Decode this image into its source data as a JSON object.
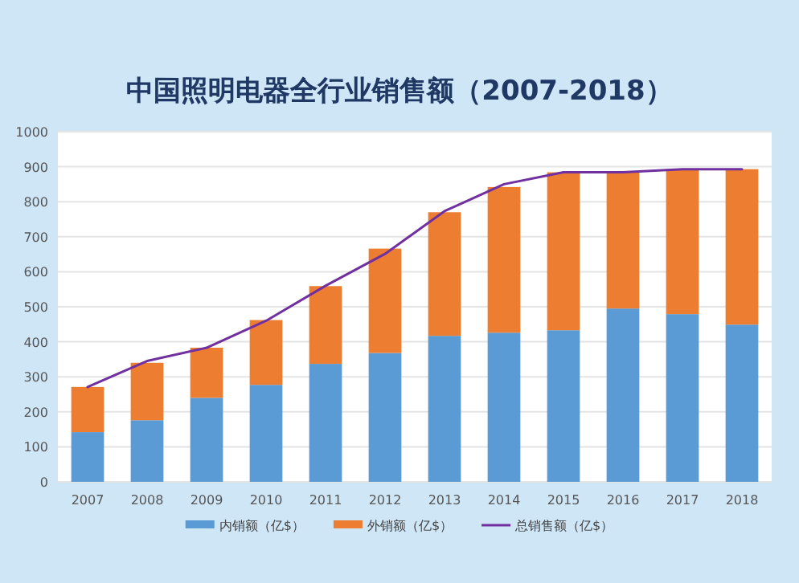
{
  "chart_data": {
    "type": "bar",
    "title": "中国照明电器全行业销售额（2007-2018）",
    "categories": [
      "2007",
      "2008",
      "2009",
      "2010",
      "2011",
      "2012",
      "2013",
      "2014",
      "2015",
      "2016",
      "2017",
      "2018"
    ],
    "stacked": true,
    "series": [
      {
        "name": "内销额（亿$）",
        "color": "#5b9bd5",
        "values": [
          142,
          176,
          240,
          277,
          337,
          368,
          417,
          426,
          433,
          495,
          479,
          449
        ]
      },
      {
        "name": "外销额（亿$）",
        "color": "#ed7d31",
        "values": [
          129,
          164,
          143,
          185,
          222,
          298,
          353,
          416,
          451,
          389,
          414,
          444
        ]
      },
      {
        "name": "总销售额（亿$）",
        "type": "line",
        "color": "#7030a0",
        "values": [
          271,
          345,
          383,
          460,
          560,
          651,
          773,
          850,
          884,
          884,
          893,
          893
        ]
      }
    ],
    "ylim": [
      0,
      1000
    ],
    "yticks": [
      0,
      100,
      200,
      300,
      400,
      500,
      600,
      700,
      800,
      900,
      1000
    ],
    "grid": "y",
    "legend": "bottom",
    "marker": "none"
  }
}
